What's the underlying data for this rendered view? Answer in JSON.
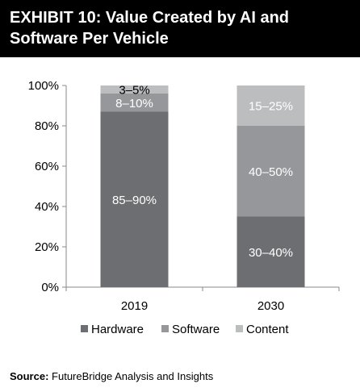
{
  "header": {
    "title": "EXHIBIT 10: Value Created by AI and Software Per Vehicle"
  },
  "source": {
    "label": "Source:",
    "text": "FutureBridge Analysis and Insights"
  },
  "colors": {
    "hardware": "#6d6e71",
    "software": "#96979a",
    "content": "#bcbdbf",
    "header_bg": "#000000"
  },
  "chart_data": {
    "type": "bar",
    "stacked": true,
    "categories": [
      "2019",
      "2030"
    ],
    "ylim": [
      0,
      100
    ],
    "yticks": [
      "0%",
      "20%",
      "40%",
      "60%",
      "80%",
      "100%"
    ],
    "ytick_values": [
      0,
      20,
      40,
      60,
      80,
      100
    ],
    "legend_position": "bottom",
    "series": [
      {
        "name": "Hardware",
        "values": [
          87,
          35
        ],
        "labels": [
          "85–90%",
          "30–40%"
        ]
      },
      {
        "name": "Software",
        "values": [
          9,
          45
        ],
        "labels": [
          "8–10%",
          "40–50%"
        ]
      },
      {
        "name": "Content",
        "values": [
          4,
          20
        ],
        "labels": [
          "3–5%",
          "15–25%"
        ]
      }
    ]
  }
}
